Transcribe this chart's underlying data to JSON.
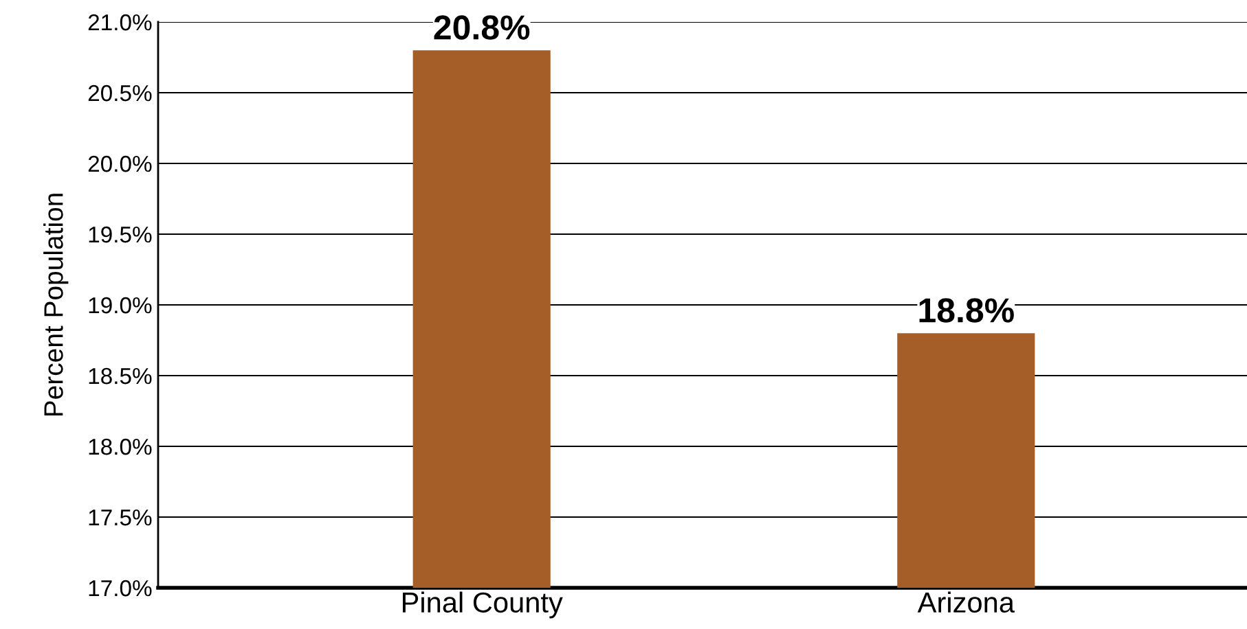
{
  "chart_data": {
    "type": "bar",
    "ylabel": "Percent Population",
    "categories": [
      "Pinal County",
      "Arizona"
    ],
    "values": [
      20.8,
      18.8
    ],
    "color": "#a65e28",
    "value_labels": [
      "20.8%",
      "18.8%"
    ],
    "ylim": [
      17.0,
      21.0
    ],
    "yticks": [
      {
        "value": 17.0,
        "label": "17.0%"
      },
      {
        "value": 17.5,
        "label": "17.5%"
      },
      {
        "value": 18.0,
        "label": "18.0%"
      },
      {
        "value": 18.5,
        "label": "18.5%"
      },
      {
        "value": 19.0,
        "label": "19.0%"
      },
      {
        "value": 19.5,
        "label": "19.5%"
      },
      {
        "value": 20.0,
        "label": "20.0%"
      },
      {
        "value": 20.5,
        "label": "20.5%"
      },
      {
        "value": 21.0,
        "label": "21.0%"
      }
    ],
    "grid": "y",
    "legend": false
  }
}
